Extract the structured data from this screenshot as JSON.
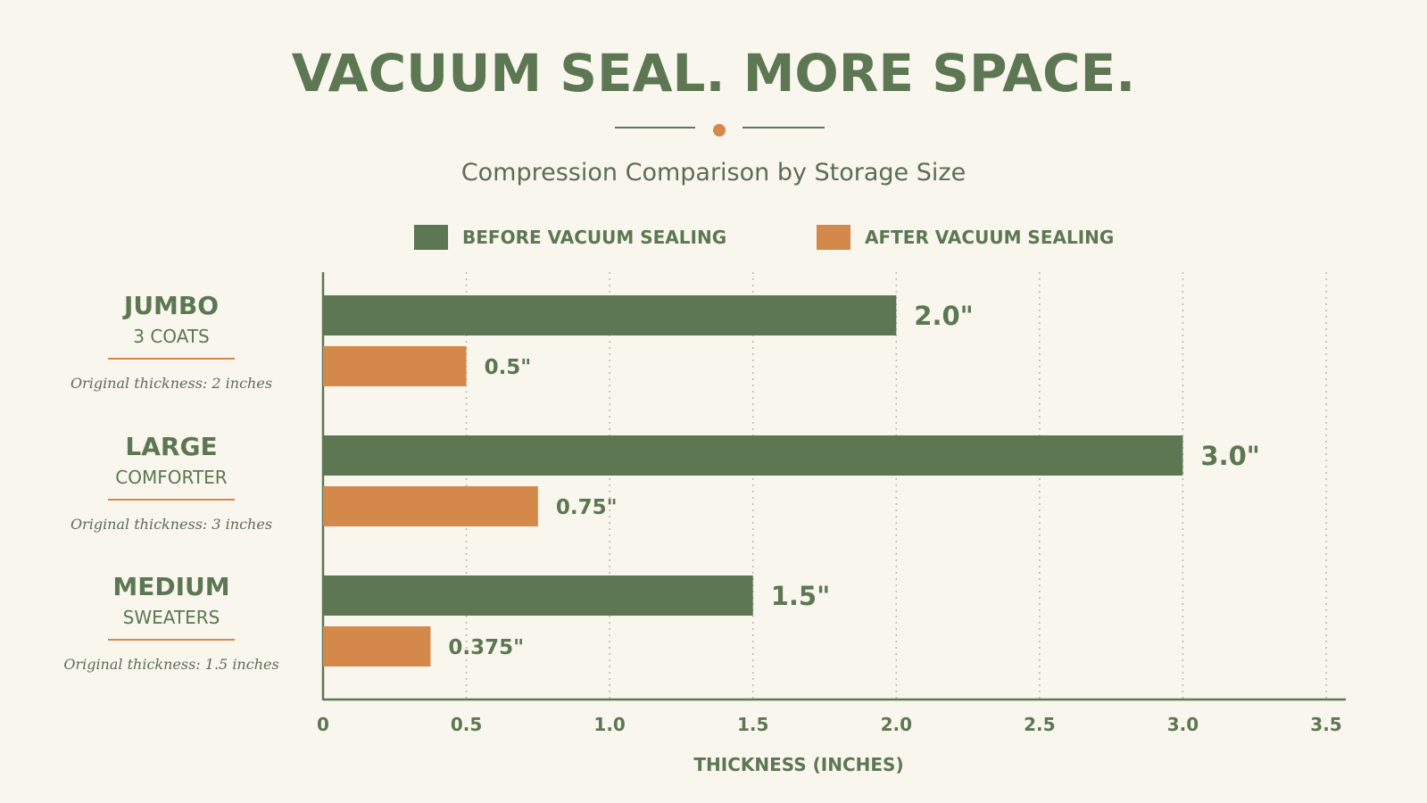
{
  "colors": {
    "before": "#5c7752",
    "after": "#d4894a",
    "background": "#f9f6ee"
  },
  "header": {
    "title": "VACUUM SEAL. MORE SPACE.",
    "subtitle": "Compression Comparison by Storage Size"
  },
  "legend": {
    "before": "BEFORE VACUUM SEALING",
    "after": "AFTER VACUUM SEALING"
  },
  "categories": [
    {
      "name": "JUMBO",
      "sub": "3 COATS",
      "note": "Original thickness: 2 inches"
    },
    {
      "name": "LARGE",
      "sub": "COMFORTER",
      "note": "Original thickness: 3 inches"
    },
    {
      "name": "MEDIUM",
      "sub": "SWEATERS",
      "note": "Original thickness: 1.5 inches"
    }
  ],
  "chart_data": {
    "type": "bar",
    "orientation": "horizontal",
    "title": "VACUUM SEAL. MORE SPACE.",
    "subtitle": "Compression Comparison by Storage Size",
    "categories": [
      "JUMBO",
      "LARGE",
      "MEDIUM"
    ],
    "series": [
      {
        "name": "BEFORE VACUUM SEALING",
        "values": [
          2.0,
          3.0,
          1.5
        ],
        "labels": [
          "2.0\"",
          "3.0\"",
          "1.5\""
        ]
      },
      {
        "name": "AFTER VACUUM SEALING",
        "values": [
          0.5,
          0.75,
          0.375
        ],
        "labels": [
          "0.5\"",
          "0.75\"",
          "0.375\""
        ]
      }
    ],
    "xlabel": "THICKNESS (INCHES)",
    "xlim": [
      0,
      3.5
    ],
    "xticks": [
      0,
      0.5,
      1.0,
      1.5,
      2.0,
      2.5,
      3.0,
      3.5
    ],
    "xtick_labels": [
      "0",
      "0.5",
      "1.0",
      "1.5",
      "2.0",
      "2.5",
      "3.0",
      "3.5"
    ],
    "grid": "vertical dotted",
    "legend_position": "top"
  }
}
